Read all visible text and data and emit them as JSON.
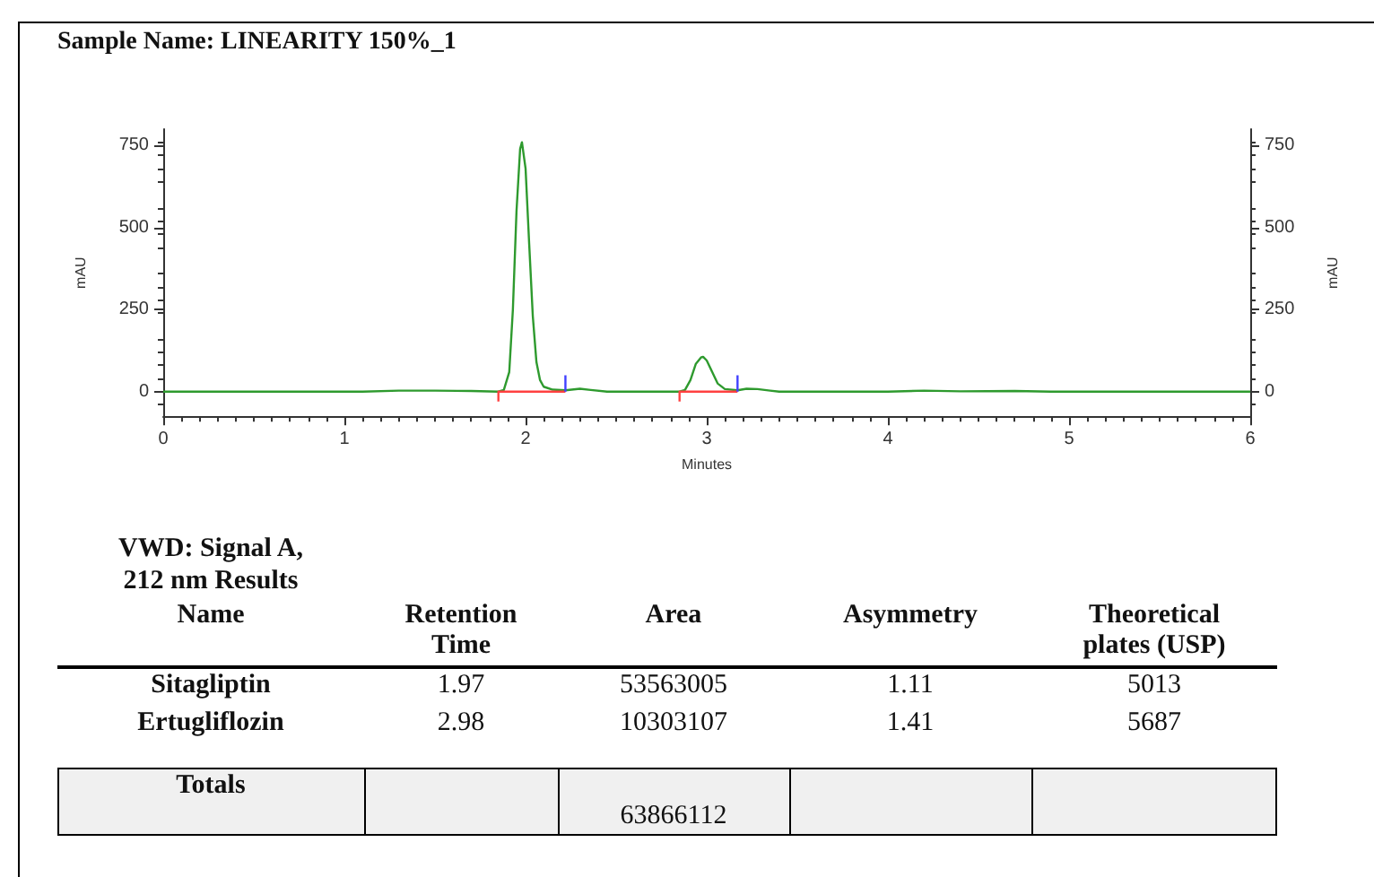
{
  "chart_data": {
    "type": "line",
    "title": "Sample Name: LINEARITY 150%_1",
    "xlabel": "Minutes",
    "ylabel": "mAU",
    "y2label": "mAU",
    "xlim": [
      0,
      6
    ],
    "xticks": [
      0,
      1,
      2,
      3,
      4,
      5,
      6
    ],
    "ylim": [
      -75,
      800
    ],
    "yticks": [
      0,
      250,
      500,
      750
    ],
    "y2lim": [
      -75,
      800
    ],
    "y2ticks": [
      0,
      250,
      500,
      750
    ],
    "grid": false,
    "marker": "none",
    "line_style": "solid",
    "series": [
      {
        "color": "#2e9a2e",
        "x": [
          0,
          1.1,
          1.3,
          1.5,
          1.7,
          1.85,
          1.88,
          1.91,
          1.93,
          1.95,
          1.97,
          1.98,
          2.0,
          2.02,
          2.04,
          2.06,
          2.08,
          2.1,
          2.15,
          2.22,
          2.3,
          2.36,
          2.45,
          2.85,
          2.88,
          2.91,
          2.94,
          2.97,
          2.98,
          3.0,
          3.03,
          3.06,
          3.1,
          3.17,
          3.22,
          3.28,
          3.35,
          3.4,
          4.0,
          4.2,
          4.4,
          4.7,
          4.9,
          6
        ],
        "values": [
          0,
          0,
          3,
          3,
          2,
          0,
          5,
          60,
          250,
          550,
          740,
          760,
          680,
          450,
          230,
          90,
          35,
          15,
          6,
          4,
          9,
          5,
          0,
          0,
          5,
          35,
          85,
          105,
          106,
          95,
          60,
          25,
          8,
          4,
          9,
          8,
          3,
          0,
          0,
          3,
          1,
          2,
          0,
          0
        ]
      },
      {
        "color": "#ff4040",
        "x": [
          1.85,
          1.85,
          2.22,
          2.5,
          2.85,
          2.85,
          3.17
        ],
        "values": [
          -30,
          0,
          0,
          null,
          -30,
          0,
          0
        ]
      },
      {
        "color": "#4040ff",
        "x": [
          2.22,
          2.22,
          2.5,
          3.17,
          3.17
        ],
        "values": [
          0,
          50,
          null,
          0,
          50
        ]
      }
    ],
    "annotations": [
      "VWD: Signal A,",
      "212 nm Results",
      "Name",
      "Retention Time",
      "Area",
      "Asymmetry",
      "Theoretical plates (USP)",
      "Sitagliptin",
      "1.97",
      "53563005",
      "1.11",
      "5013",
      "Ertugliflozin",
      "2.98",
      "10303107",
      "1.41",
      "5687",
      "Totals",
      "63866112"
    ]
  }
}
